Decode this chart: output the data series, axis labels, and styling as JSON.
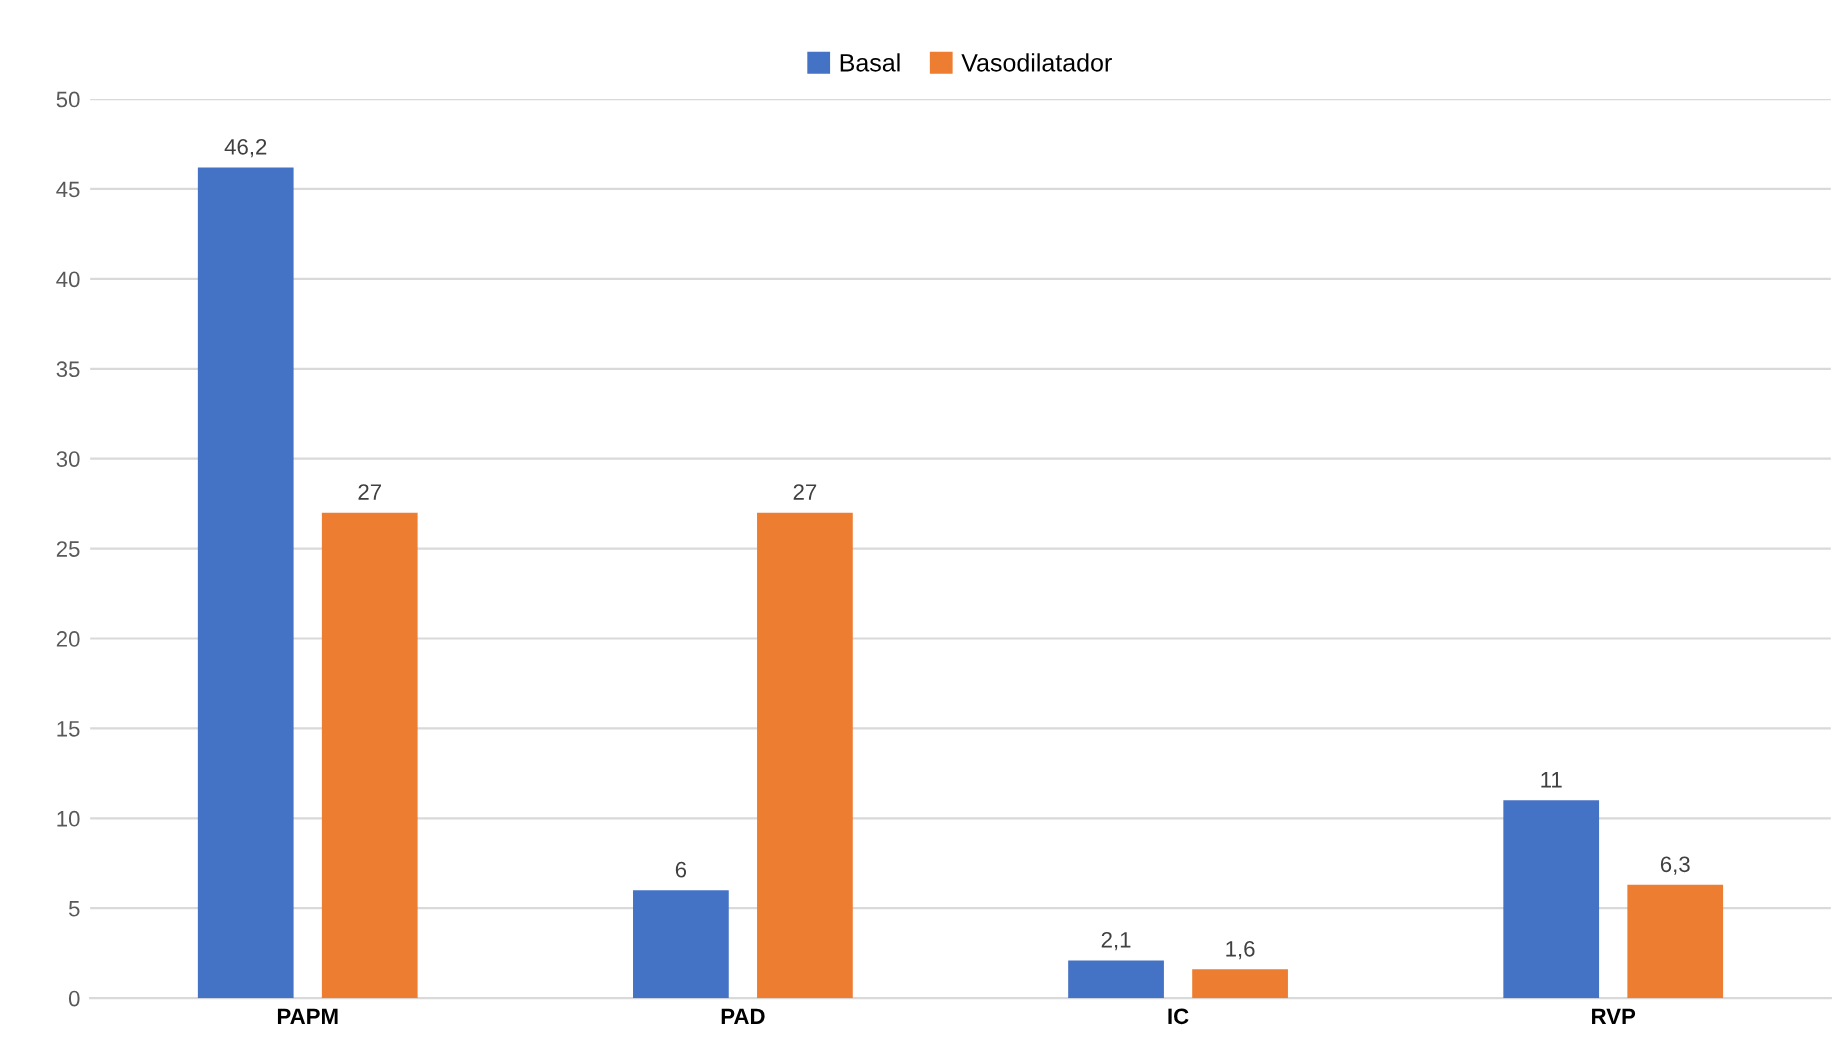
{
  "chart_data": {
    "type": "bar",
    "categories": [
      "PAPM",
      "PAD",
      "IC",
      "RVP"
    ],
    "series": [
      {
        "name": "Basal",
        "color": "#4472c4",
        "values": [
          46.2,
          6,
          2.1,
          11
        ],
        "value_labels": [
          "46,2",
          "6",
          "2,1",
          "11"
        ]
      },
      {
        "name": "Vasodilatador",
        "color": "#ed7d31",
        "values": [
          27,
          27,
          1.6,
          6.3
        ],
        "value_labels": [
          "27",
          "27",
          "1,6",
          "6,3"
        ]
      }
    ],
    "ylim": [
      0,
      50
    ],
    "yticks": [
      0,
      5,
      10,
      15,
      20,
      25,
      30,
      35,
      40,
      45,
      50
    ],
    "grid": "y",
    "legend": "top"
  }
}
